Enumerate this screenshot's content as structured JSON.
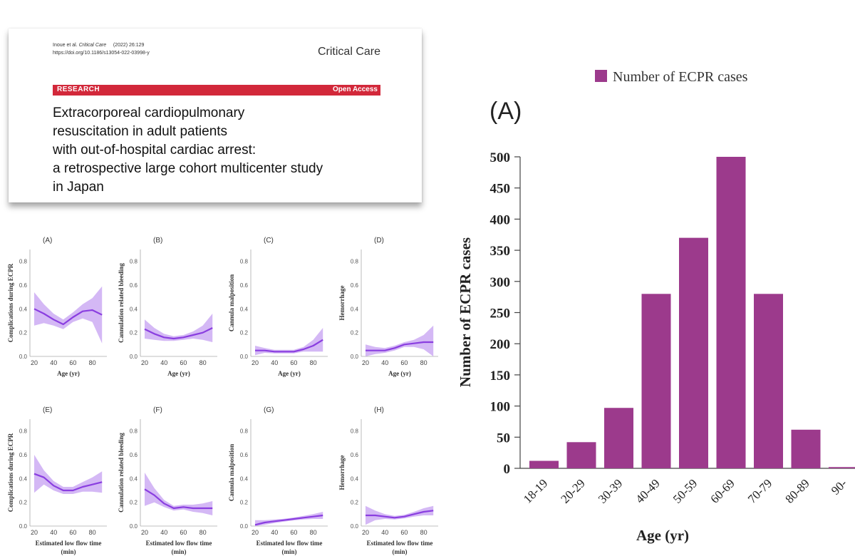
{
  "paper": {
    "citation_authors": "Inoue et al.",
    "citation_journal": "Critical Care",
    "citation_year_vol": "(2022) 26:129",
    "doi": "https://doi.org/10.1186/s13054-022-03998-y",
    "journal_name": "Critical Care",
    "section_label": "RESEARCH",
    "access_label": "Open Access",
    "title_lines": [
      "Extracorporeal cardiopulmonary",
      "resuscitation in adult patients",
      "with out-of-hospital cardiac arrest:",
      "a retrospective large cohort multicenter study",
      "in Japan"
    ]
  },
  "colors": {
    "accent": "#d2283a",
    "line": "#8a3ee0",
    "band": "#c9a6f2",
    "bar": "#9c3a8c"
  },
  "chart_data": [
    {
      "type": "bar",
      "panel_label": "(A)",
      "legend": "Number of ECPR cases",
      "categories": [
        "18-19",
        "20-29",
        "30-39",
        "40-49",
        "50-59",
        "60-69",
        "70-79",
        "80-89",
        "90-"
      ],
      "values": [
        12,
        42,
        97,
        280,
        370,
        500,
        280,
        62,
        2
      ],
      "ylabel": "Number of ECPR cases",
      "xlabel": "Age (yr)",
      "ylim": [
        0,
        500
      ],
      "yticks": [
        "0",
        "50",
        "100",
        "150",
        "200",
        "250",
        "300",
        "350",
        "400",
        "450",
        "500"
      ]
    },
    {
      "type": "line",
      "panel_label": "(A)",
      "ylabel": "Complications during ECPR",
      "xlabel": "Age (yr)",
      "x": [
        20,
        30,
        40,
        50,
        60,
        70,
        80,
        90
      ],
      "y": [
        0.4,
        0.36,
        0.31,
        0.27,
        0.33,
        0.38,
        0.39,
        0.35
      ],
      "band_half_width": [
        0.14,
        0.08,
        0.05,
        0.04,
        0.04,
        0.06,
        0.1,
        0.24
      ],
      "xticks": [
        "20",
        "40",
        "60",
        "80"
      ],
      "yticks": [
        "0.0",
        "0.2",
        "0.4",
        "0.6",
        "0.8"
      ],
      "ylim": [
        0,
        0.9
      ]
    },
    {
      "type": "line",
      "panel_label": "(B)",
      "ylabel": "Cannulation related bleeding",
      "xlabel": "Age (yr)",
      "x": [
        20,
        30,
        40,
        50,
        60,
        70,
        80,
        90
      ],
      "y": [
        0.23,
        0.19,
        0.16,
        0.15,
        0.16,
        0.18,
        0.2,
        0.24
      ],
      "band_half_width": [
        0.08,
        0.05,
        0.03,
        0.02,
        0.02,
        0.03,
        0.06,
        0.12
      ],
      "xticks": [
        "20",
        "40",
        "60",
        "80"
      ],
      "yticks": [
        "0.0",
        "0.2",
        "0.4",
        "0.6",
        "0.8"
      ],
      "ylim": [
        0,
        0.9
      ]
    },
    {
      "type": "line",
      "panel_label": "(C)",
      "ylabel": "Cannula malposition",
      "xlabel": "Age (yr)",
      "x": [
        20,
        30,
        40,
        50,
        60,
        70,
        80,
        90
      ],
      "y": [
        0.05,
        0.05,
        0.04,
        0.04,
        0.04,
        0.06,
        0.09,
        0.14
      ],
      "band_half_width": [
        0.04,
        0.02,
        0.015,
        0.015,
        0.015,
        0.02,
        0.05,
        0.1
      ],
      "xticks": [
        "20",
        "40",
        "60",
        "80"
      ],
      "yticks": [
        "0.0",
        "0.2",
        "0.4",
        "0.6",
        "0.8"
      ],
      "ylim": [
        0,
        0.9
      ]
    },
    {
      "type": "line",
      "panel_label": "(D)",
      "ylabel": "Hemorrhage",
      "xlabel": "Age (yr)",
      "x": [
        20,
        30,
        40,
        50,
        60,
        70,
        80,
        90
      ],
      "y": [
        0.05,
        0.05,
        0.05,
        0.07,
        0.1,
        0.11,
        0.12,
        0.12
      ],
      "band_half_width": [
        0.05,
        0.03,
        0.02,
        0.02,
        0.02,
        0.03,
        0.06,
        0.14
      ],
      "xticks": [
        "20",
        "40",
        "60",
        "80"
      ],
      "yticks": [
        "0.0",
        "0.2",
        "0.4",
        "0.6",
        "0.8"
      ],
      "ylim": [
        0,
        0.9
      ]
    },
    {
      "type": "line",
      "panel_label": "(E)",
      "ylabel": "Complications during ECPR",
      "xlabel": "Estimated low flow time (min)",
      "x": [
        20,
        30,
        40,
        50,
        60,
        70,
        80,
        90
      ],
      "y": [
        0.44,
        0.41,
        0.34,
        0.3,
        0.3,
        0.33,
        0.35,
        0.37
      ],
      "band_half_width": [
        0.16,
        0.06,
        0.04,
        0.03,
        0.03,
        0.04,
        0.06,
        0.09
      ],
      "xticks": [
        "20",
        "40",
        "60",
        "80"
      ],
      "yticks": [
        "0.0",
        "0.2",
        "0.4",
        "0.6",
        "0.8"
      ],
      "ylim": [
        0,
        0.9
      ]
    },
    {
      "type": "line",
      "panel_label": "(F)",
      "ylabel": "Cannulation related bleeding",
      "xlabel": "Estimated low flow time (min)",
      "x": [
        20,
        30,
        40,
        50,
        60,
        70,
        80,
        90
      ],
      "y": [
        0.31,
        0.26,
        0.19,
        0.15,
        0.16,
        0.15,
        0.15,
        0.15
      ],
      "band_half_width": [
        0.14,
        0.06,
        0.03,
        0.02,
        0.02,
        0.03,
        0.04,
        0.06
      ],
      "xticks": [
        "20",
        "40",
        "60",
        "80"
      ],
      "yticks": [
        "0.0",
        "0.2",
        "0.4",
        "0.6",
        "0.8"
      ],
      "ylim": [
        0,
        0.9
      ]
    },
    {
      "type": "line",
      "panel_label": "(G)",
      "ylabel": "Cannula malposition",
      "xlabel": "Estimated low flow time (min)",
      "x": [
        20,
        30,
        40,
        50,
        60,
        70,
        80,
        90
      ],
      "y": [
        0.01,
        0.03,
        0.04,
        0.05,
        0.06,
        0.07,
        0.08,
        0.09
      ],
      "band_half_width": [
        0.04,
        0.02,
        0.015,
        0.012,
        0.012,
        0.015,
        0.02,
        0.03
      ],
      "xticks": [
        "20",
        "40",
        "60",
        "80"
      ],
      "yticks": [
        "0.0",
        "0.2",
        "0.4",
        "0.6",
        "0.8"
      ],
      "ylim": [
        0,
        0.9
      ]
    },
    {
      "type": "line",
      "panel_label": "(H)",
      "ylabel": "Hemorrhage",
      "xlabel": "Estimated low flow time (min)",
      "x": [
        20,
        30,
        40,
        50,
        60,
        70,
        80,
        90
      ],
      "y": [
        0.09,
        0.09,
        0.08,
        0.07,
        0.08,
        0.1,
        0.12,
        0.13
      ],
      "band_half_width": [
        0.08,
        0.04,
        0.02,
        0.015,
        0.015,
        0.02,
        0.03,
        0.04
      ],
      "xticks": [
        "20",
        "40",
        "60",
        "80"
      ],
      "yticks": [
        "0.0",
        "0.2",
        "0.4",
        "0.6",
        "0.8"
      ],
      "ylim": [
        0,
        0.9
      ]
    }
  ]
}
